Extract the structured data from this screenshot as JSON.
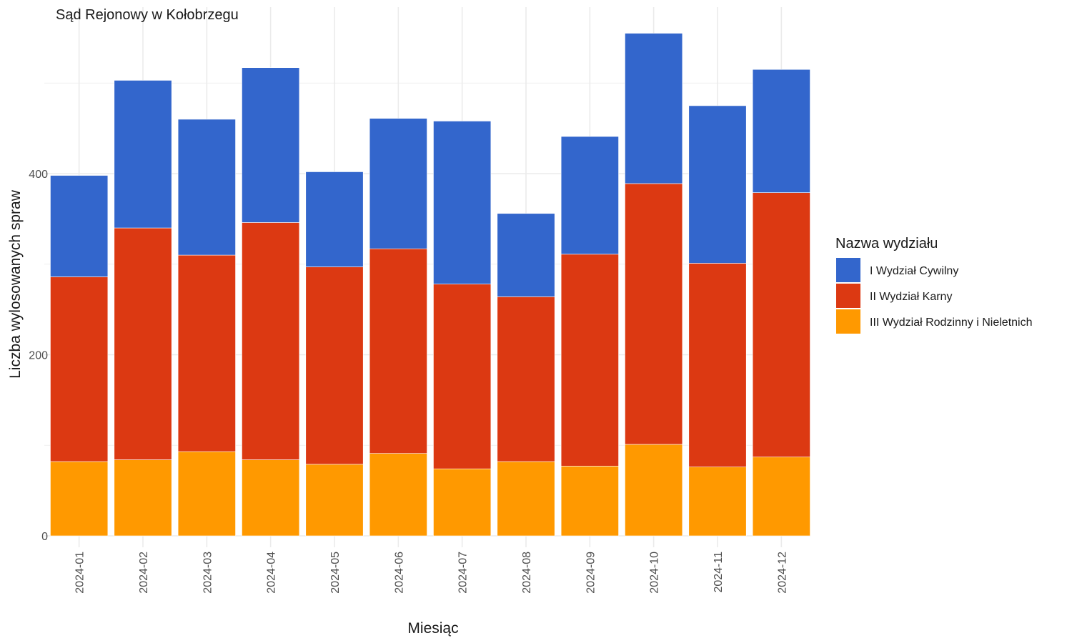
{
  "chart_data": {
    "type": "bar",
    "stacked": true,
    "title": "Sąd Rejonowy w Kołobrzegu",
    "xlabel": "Miesiąc",
    "ylabel": "Liczba wylosowanych spraw",
    "ylim": [
      0,
      580
    ],
    "yticks": [
      0,
      200,
      400
    ],
    "grid": true,
    "legend_position": "right",
    "legend_title": "Nazwa wydziału",
    "categories": [
      "2024-01",
      "2024-02",
      "2024-03",
      "2024-04",
      "2024-05",
      "2024-06",
      "2024-07",
      "2024-08",
      "2024-09",
      "2024-10",
      "2024-11",
      "2024-12"
    ],
    "series": [
      {
        "name": "III Wydział Rodzinny i Nieletnich",
        "color": "#FF9900",
        "values": [
          82,
          84,
          93,
          84,
          79,
          91,
          74,
          82,
          77,
          101,
          76,
          87
        ]
      },
      {
        "name": "II Wydział Karny",
        "color": "#DC3912",
        "values": [
          204,
          256,
          217,
          262,
          218,
          226,
          204,
          182,
          234,
          288,
          225,
          292
        ]
      },
      {
        "name": "I Wydział Cywilny",
        "color": "#3366CC",
        "values": [
          112,
          163,
          150,
          171,
          105,
          144,
          180,
          92,
          130,
          166,
          174,
          136
        ]
      }
    ],
    "legend_order": [
      "I Wydział Cywilny",
      "II Wydział Karny",
      "III Wydział Rodzinny i Nieletnich"
    ]
  }
}
